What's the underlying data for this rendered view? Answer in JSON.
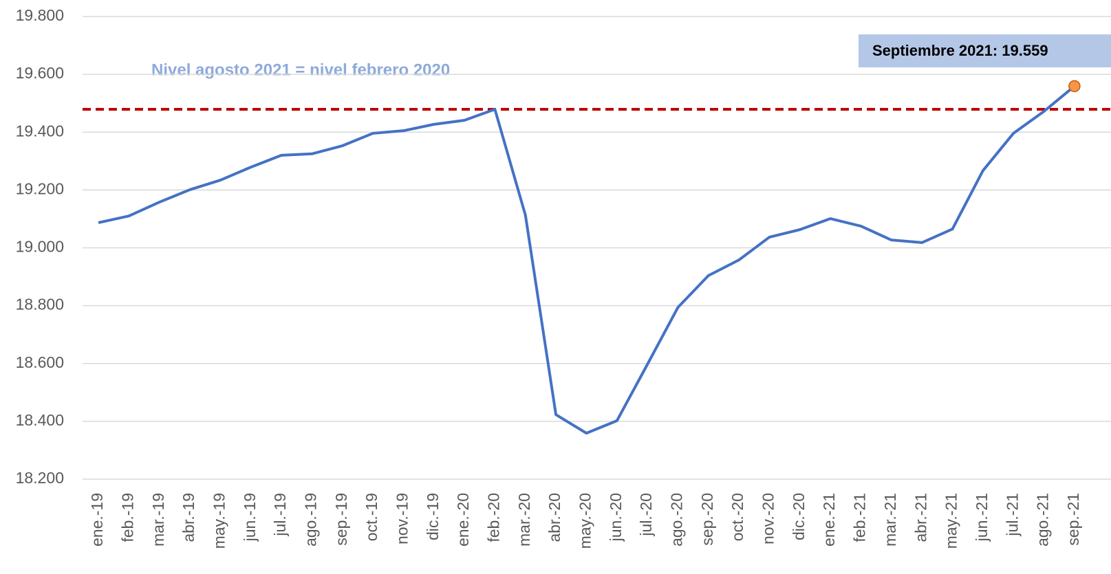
{
  "chart_data": {
    "type": "line",
    "categories": [
      "ene.-19",
      "feb.-19",
      "mar.-19",
      "abr.-19",
      "may.-19",
      "jun.-19",
      "jul.-19",
      "ago.-19",
      "sep.-19",
      "oct.-19",
      "nov.-19",
      "dic.-19",
      "ene.-20",
      "feb.-20",
      "mar.-20",
      "abr.-20",
      "may.-20",
      "jun.-20",
      "jul.-20",
      "ago.-20",
      "sep.-20",
      "oct.-20",
      "nov.-20",
      "dic.-20",
      "ene.-21",
      "feb.-21",
      "mar.-21",
      "abr.-21",
      "may.-21",
      "jun.-21",
      "jul.-21",
      "ago.-21",
      "sep.-21"
    ],
    "series": [
      {
        "color": "#4472c4",
        "values": [
          19087,
          19110,
          19158,
          19201,
          19234,
          19279,
          19320,
          19325,
          19353,
          19396,
          19405,
          19427,
          19441,
          19479,
          19113,
          18423,
          18359,
          18402,
          18597,
          18794,
          18904,
          18958,
          19037,
          19063,
          19101,
          19075,
          19027,
          19018,
          19065,
          19267,
          19396,
          19472,
          19559
        ]
      }
    ],
    "ylim": [
      18200,
      19800
    ],
    "yticks": [
      {
        "value": 18200,
        "label": "18.200"
      },
      {
        "value": 18400,
        "label": "18.400"
      },
      {
        "value": 18600,
        "label": "18.600"
      },
      {
        "value": 18800,
        "label": "18.800"
      },
      {
        "value": 19000,
        "label": "19.000"
      },
      {
        "value": 19200,
        "label": "19.200"
      },
      {
        "value": 19400,
        "label": "19.400"
      },
      {
        "value": 19600,
        "label": "19.600"
      },
      {
        "value": 19800,
        "label": "19.800"
      }
    ],
    "grid": true,
    "reference_line": {
      "value": 19479,
      "color": "#c00000",
      "label": "Nivel agosto 2021 = nivel febrero 2020"
    },
    "highlight": {
      "index": 32,
      "color": "#f79646",
      "label": "Septiembre 2021: 19.559"
    }
  }
}
